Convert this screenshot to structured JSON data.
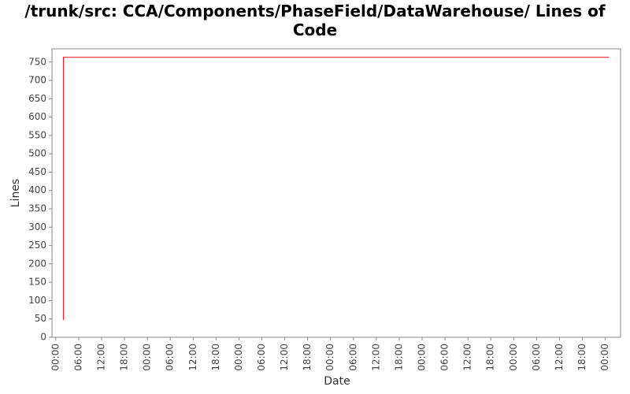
{
  "chart_data": {
    "type": "line",
    "title": "/trunk/src: CCA/Components/PhaseField/DataWarehouse/ Lines of Code",
    "x_label": "Date",
    "y_label": "Lines",
    "x": [
      2,
      2,
      145
    ],
    "series": [
      {
        "name": "Lines",
        "color": "#e8242c",
        "values": [
          47,
          763,
          763
        ]
      }
    ],
    "xlim": [
      -1,
      148
    ],
    "xticks": [
      {
        "value": 0,
        "label": "00:00"
      },
      {
        "value": 6,
        "label": "06:00"
      },
      {
        "value": 12,
        "label": "12:00"
      },
      {
        "value": 18,
        "label": "18:00"
      },
      {
        "value": 24,
        "label": "00:00"
      },
      {
        "value": 30,
        "label": "06:00"
      },
      {
        "value": 36,
        "label": "12:00"
      },
      {
        "value": 42,
        "label": "18:00"
      },
      {
        "value": 48,
        "label": "00:00"
      },
      {
        "value": 54,
        "label": "06:00"
      },
      {
        "value": 60,
        "label": "12:00"
      },
      {
        "value": 66,
        "label": "18:00"
      },
      {
        "value": 72,
        "label": "00:00"
      },
      {
        "value": 78,
        "label": "06:00"
      },
      {
        "value": 84,
        "label": "12:00"
      },
      {
        "value": 90,
        "label": "18:00"
      },
      {
        "value": 96,
        "label": "00:00"
      },
      {
        "value": 102,
        "label": "06:00"
      },
      {
        "value": 108,
        "label": "12:00"
      },
      {
        "value": 114,
        "label": "18:00"
      },
      {
        "value": 120,
        "label": "00:00"
      },
      {
        "value": 126,
        "label": "06:00"
      },
      {
        "value": 132,
        "label": "12:00"
      },
      {
        "value": 138,
        "label": "18:00"
      },
      {
        "value": 144,
        "label": "00:00"
      }
    ],
    "ylim": [
      0,
      786
    ],
    "yticks": [
      0,
      50,
      100,
      150,
      200,
      250,
      300,
      350,
      400,
      450,
      500,
      550,
      600,
      650,
      700,
      750
    ],
    "grid": false
  }
}
